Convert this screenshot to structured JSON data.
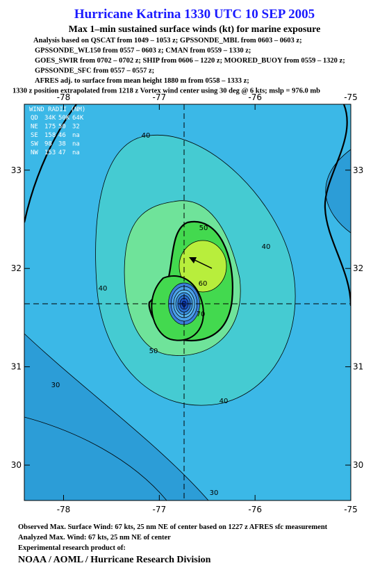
{
  "header": {
    "title": "Hurricane Katrina 1330 UTC 10 SEP 2005",
    "subtitle": "Max 1–min sustained surface winds (kt) for marine exposure",
    "analysis_lines": [
      "Analysis based on  QSCAT from 1049 – 1053 z; GPSSONDE_MBL from 0603 – 0603 z;",
      "GPSSONDE_WL150 from 0557 – 0603 z;  CMAN from 0559 – 1330 z;",
      "GOES_SWIR from 0702 – 0702 z;  SHIP from 0606 – 1220 z;  MOORED_BUOY from 0559 – 1320 z;",
      "GPSSONDE_SFC from 0557 – 0557 z;",
      "AFRES adj. to surface from mean height 1880 m from 0558 – 1333 z;",
      "1330 z position extrapolated from 1218 z Vortex wind center using 30 deg @ 6 kts; mslp = 976.0 mb"
    ]
  },
  "map": {
    "xlim": [
      -78.41,
      -75.0
    ],
    "ylim": [
      29.64,
      33.67
    ],
    "xticks": [
      -78,
      -77,
      -76,
      -75
    ],
    "yticks": [
      30,
      31,
      32,
      33
    ],
    "contour_labels": [
      "40",
      "40",
      "40",
      "40",
      "30",
      "30",
      "50",
      "50",
      "60",
      "70"
    ]
  },
  "wind_radii": {
    "title": "WIND RADII (NM)",
    "rows": [
      [
        "QD",
        "34K",
        "50K",
        "64K"
      ],
      [
        "NE",
        "175",
        "50",
        "32"
      ],
      [
        "SE",
        "158",
        "46",
        "na"
      ],
      [
        "SW",
        "98",
        "38",
        "na"
      ],
      [
        "NW",
        "153",
        "47",
        "na"
      ]
    ]
  },
  "footer": {
    "lines": [
      "Observed Max. Surface Wind: 67 kts, 25 nm NE of center based on 1227 z AFRES sfc measurement",
      "Analyzed Max. Wind: 67 kts, 25 nm NE of center",
      "Experimental research product of:"
    ],
    "credit": "NOAA / AOML / Hurricane Research Division"
  }
}
